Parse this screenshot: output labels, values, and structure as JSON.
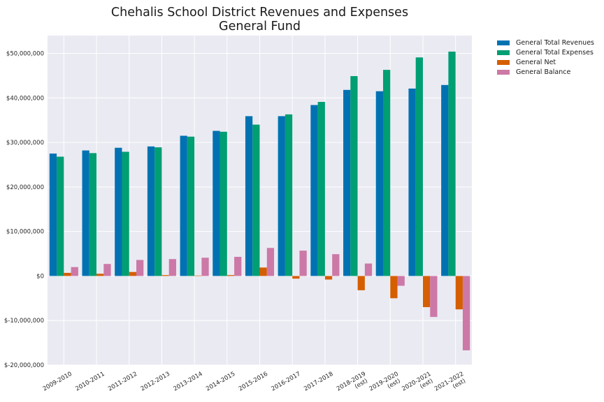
{
  "chart_data": {
    "type": "bar",
    "title_lines": [
      "Chehalis School District Revenues and Expenses",
      "General Fund"
    ],
    "xlabel": "",
    "ylabel": "",
    "ylim": [
      -20000000,
      54000000
    ],
    "yticks": [
      -20000000,
      -10000000,
      0,
      10000000,
      20000000,
      30000000,
      40000000,
      50000000
    ],
    "ytick_labels": [
      "$-20,000,000",
      "$-10,000,000",
      "$0",
      "$10,000,000",
      "$20,000,000",
      "$30,000,000",
      "$40,000,000",
      "$50,000,000"
    ],
    "categories": [
      "2009-2010",
      "2010-2011",
      "2011-2012",
      "2012-2013",
      "2013-2014",
      "2014-2015",
      "2015-2016",
      "2016-2017",
      "2017-2018",
      "2018-2019\n(est)",
      "2019-2020\n(est)",
      "2020-2021\n(est)",
      "2021-2022\n(est)"
    ],
    "grid": true,
    "legend_position": "outside-top-right",
    "series": [
      {
        "name": "General Total Revenues",
        "color": "#0072b2",
        "values": [
          27500000,
          28200000,
          28800000,
          29100000,
          31500000,
          32600000,
          35900000,
          35900000,
          38400000,
          41800000,
          41500000,
          42100000,
          42900000
        ]
      },
      {
        "name": "General Total Expenses",
        "color": "#009e73",
        "values": [
          26800000,
          27600000,
          27900000,
          28900000,
          31300000,
          32400000,
          34000000,
          36300000,
          39100000,
          44900000,
          46300000,
          49100000,
          50400000
        ]
      },
      {
        "name": "General Net",
        "color": "#d55e00",
        "values": [
          700000,
          500000,
          900000,
          200000,
          100000,
          200000,
          1900000,
          -600000,
          -800000,
          -3200000,
          -5000000,
          -7000000,
          -7500000
        ]
      },
      {
        "name": "General Balance",
        "color": "#cc79a7",
        "values": [
          2000000,
          2700000,
          3600000,
          3800000,
          4100000,
          4300000,
          6300000,
          5700000,
          4900000,
          2800000,
          -2200000,
          -9200000,
          -16700000
        ]
      }
    ]
  }
}
